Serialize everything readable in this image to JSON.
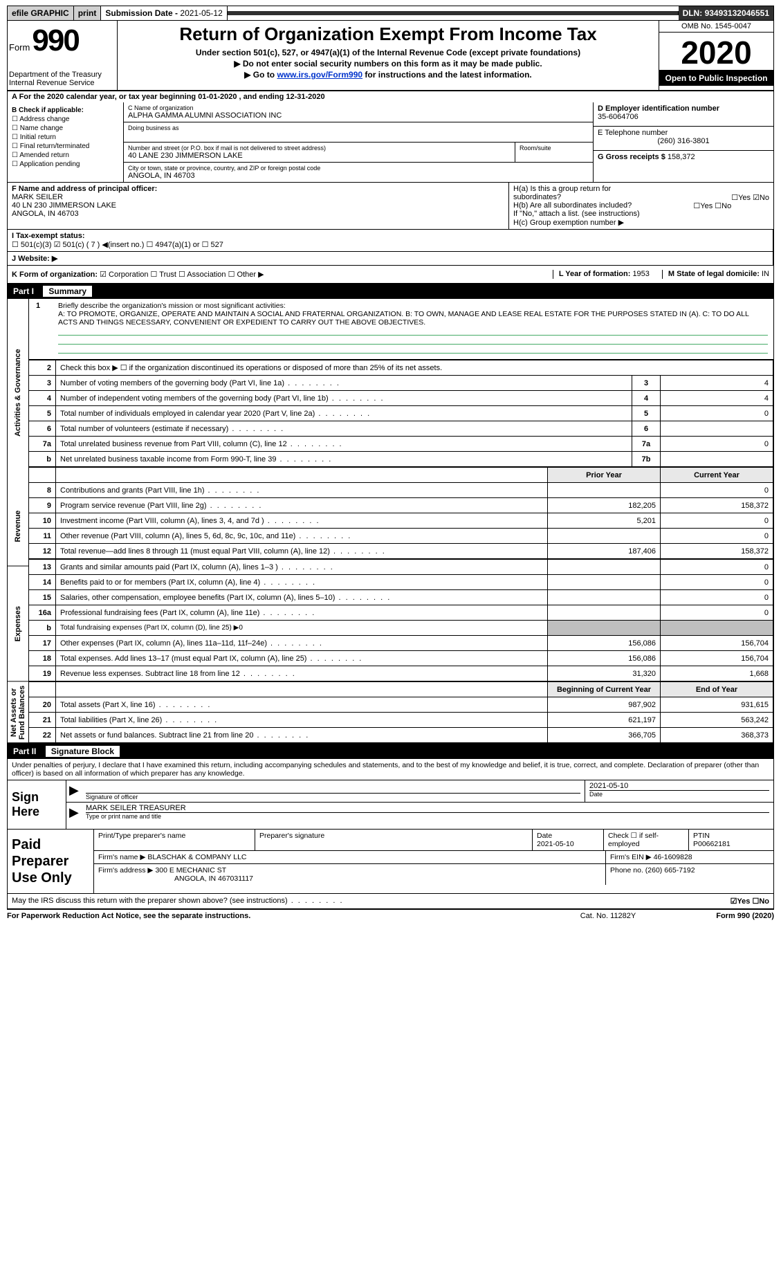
{
  "topbar": {
    "efile": "efile GRAPHIC",
    "print": "print",
    "subdate_label": "Submission Date - ",
    "subdate": "2021-05-12",
    "dln_label": "DLN: ",
    "dln": "93493132046551"
  },
  "header": {
    "form_word": "Form",
    "form_number": "990",
    "dept1": "Department of the Treasury",
    "dept2": "Internal Revenue Service",
    "title": "Return of Organization Exempt From Income Tax",
    "subtitle": "Under section 501(c), 527, or 4947(a)(1) of the Internal Revenue Code (except private foundations)",
    "note1": "▶ Do not enter social security numbers on this form as it may be made public.",
    "note2_pre": "▶ Go to ",
    "note2_link": "www.irs.gov/Form990",
    "note2_post": " for instructions and the latest information.",
    "omb": "OMB No. 1545-0047",
    "year": "2020",
    "inspect": "Open to Public Inspection"
  },
  "line_a": "A For the 2020 calendar year, or tax year beginning 01-01-2020    , and ending 12-31-2020",
  "box_b": {
    "title": "B Check if applicable:",
    "opts": [
      "Address change",
      "Name change",
      "Initial return",
      "Final return/terminated",
      "Amended return",
      "Application pending"
    ]
  },
  "box_c": {
    "name_label": "C Name of organization",
    "name": "ALPHA GAMMA ALUMNI ASSOCIATION INC",
    "dba_label": "Doing business as",
    "addr_label": "Number and street (or P.O. box if mail is not delivered to street address)",
    "room_label": "Room/suite",
    "addr": "40 LANE 230 JIMMERSON LAKE",
    "city_label": "City or town, state or province, country, and ZIP or foreign postal code",
    "city": "ANGOLA, IN  46703"
  },
  "box_d": {
    "label": "D Employer identification number",
    "value": "35-6064706"
  },
  "box_e": {
    "label": "E Telephone number",
    "value": "(260) 316-3801"
  },
  "box_g": {
    "label": "G Gross receipts $ ",
    "value": "158,372"
  },
  "box_f": {
    "label": "F  Name and address of principal officer:",
    "name": "MARK SEILER",
    "addr1": "40 LN 230 JIMMERSON LAKE",
    "addr2": "ANGOLA, IN  46703"
  },
  "box_h": {
    "ha_label": "H(a)  Is this a group return for",
    "ha_label2": "subordinates?",
    "ha_yes": "☐Yes ☑No",
    "hb_label": "H(b)  Are all subordinates included?",
    "hb_yes": "☐Yes ☐No",
    "hb_note": "If \"No,\" attach a list. (see instructions)",
    "hc_label": "H(c)  Group exemption number ▶"
  },
  "row_i": {
    "label": "I   Tax-exempt status:",
    "opts": "☐ 501(c)(3)    ☑ 501(c) ( 7 ) ◀(insert no.)    ☐ 4947(a)(1) or   ☐ 527"
  },
  "row_j": {
    "label": "J   Website: ▶"
  },
  "row_k": {
    "label": "K Form of organization:",
    "opts": "☑ Corporation   ☐ Trust   ☐ Association   ☐ Other ▶"
  },
  "row_lm": {
    "l_label": "L Year of formation: ",
    "l_val": "1953",
    "m_label": "M State of legal domicile: ",
    "m_val": "IN"
  },
  "part1": {
    "tag": "Part I",
    "title": "Summary"
  },
  "mission": {
    "num": "1",
    "lead": "Briefly describe the organization's mission or most significant activities:",
    "text": "A: TO PROMOTE, ORGANIZE, OPERATE AND MAINTAIN A SOCIAL AND FRATERNAL ORGANIZATION. B: TO OWN, MANAGE AND LEASE REAL ESTATE FOR THE PURPOSES STATED IN (A). C: TO DO ALL ACTS AND THINGS NECESSARY, CONVENIENT OR EXPEDIENT TO CARRY OUT THE ABOVE OBJECTIVES."
  },
  "sidebars": [
    "Activities & Governance",
    "Revenue",
    "Expenses",
    "Net Assets or Fund Balances"
  ],
  "gov_rows": [
    {
      "n": "2",
      "d": "Check this box ▶ ☐  if the organization discontinued its operations or disposed of more than 25% of its net assets.",
      "box": "",
      "v": ""
    },
    {
      "n": "3",
      "d": "Number of voting members of the governing body (Part VI, line 1a)",
      "box": "3",
      "v": "4"
    },
    {
      "n": "4",
      "d": "Number of independent voting members of the governing body (Part VI, line 1b)",
      "box": "4",
      "v": "4"
    },
    {
      "n": "5",
      "d": "Total number of individuals employed in calendar year 2020 (Part V, line 2a)",
      "box": "5",
      "v": "0"
    },
    {
      "n": "6",
      "d": "Total number of volunteers (estimate if necessary)",
      "box": "6",
      "v": ""
    },
    {
      "n": "7a",
      "d": "Total unrelated business revenue from Part VIII, column (C), line 12",
      "box": "7a",
      "v": "0"
    },
    {
      "n": "b",
      "d": "Net unrelated business taxable income from Form 990-T, line 39",
      "box": "7b",
      "v": ""
    }
  ],
  "rev_header": {
    "prior": "Prior Year",
    "current": "Current Year"
  },
  "rev_rows": [
    {
      "n": "8",
      "d": "Contributions and grants (Part VIII, line 1h)",
      "p": "",
      "c": "0"
    },
    {
      "n": "9",
      "d": "Program service revenue (Part VIII, line 2g)",
      "p": "182,205",
      "c": "158,372"
    },
    {
      "n": "10",
      "d": "Investment income (Part VIII, column (A), lines 3, 4, and 7d )",
      "p": "5,201",
      "c": "0"
    },
    {
      "n": "11",
      "d": "Other revenue (Part VIII, column (A), lines 5, 6d, 8c, 9c, 10c, and 11e)",
      "p": "",
      "c": "0"
    },
    {
      "n": "12",
      "d": "Total revenue—add lines 8 through 11 (must equal Part VIII, column (A), line 12)",
      "p": "187,406",
      "c": "158,372"
    }
  ],
  "exp_rows": [
    {
      "n": "13",
      "d": "Grants and similar amounts paid (Part IX, column (A), lines 1–3 )",
      "p": "",
      "c": "0"
    },
    {
      "n": "14",
      "d": "Benefits paid to or for members (Part IX, column (A), line 4)",
      "p": "",
      "c": "0"
    },
    {
      "n": "15",
      "d": "Salaries, other compensation, employee benefits (Part IX, column (A), lines 5–10)",
      "p": "",
      "c": "0"
    },
    {
      "n": "16a",
      "d": "Professional fundraising fees (Part IX, column (A), line 11e)",
      "p": "",
      "c": "0"
    },
    {
      "n": "b",
      "d": "Total fundraising expenses (Part IX, column (D), line 25) ▶0",
      "p": "shade",
      "c": "shade"
    },
    {
      "n": "17",
      "d": "Other expenses (Part IX, column (A), lines 11a–11d, 11f–24e)",
      "p": "156,086",
      "c": "156,704"
    },
    {
      "n": "18",
      "d": "Total expenses. Add lines 13–17 (must equal Part IX, column (A), line 25)",
      "p": "156,086",
      "c": "156,704"
    },
    {
      "n": "19",
      "d": "Revenue less expenses. Subtract line 18 from line 12",
      "p": "31,320",
      "c": "1,668"
    }
  ],
  "na_header": {
    "prior": "Beginning of Current Year",
    "current": "End of Year"
  },
  "na_rows": [
    {
      "n": "20",
      "d": "Total assets (Part X, line 16)",
      "p": "987,902",
      "c": "931,615"
    },
    {
      "n": "21",
      "d": "Total liabilities (Part X, line 26)",
      "p": "621,197",
      "c": "563,242"
    },
    {
      "n": "22",
      "d": "Net assets or fund balances. Subtract line 21 from line 20",
      "p": "366,705",
      "c": "368,373"
    }
  ],
  "part2": {
    "tag": "Part II",
    "title": "Signature Block"
  },
  "perjury": "Under penalties of perjury, I declare that I have examined this return, including accompanying schedules and statements, and to the best of my knowledge and belief, it is true, correct, and complete. Declaration of preparer (other than officer) is based on all information of which preparer has any knowledge.",
  "sign": {
    "label": "Sign Here",
    "sig_label": "Signature of officer",
    "date_label": "Date",
    "date": "2021-05-10",
    "name": "MARK SEILER TREASURER",
    "name_label": "Type or print name and title"
  },
  "prep": {
    "label": "Paid Preparer Use Only",
    "h1": "Print/Type preparer's name",
    "h2": "Preparer's signature",
    "h3": "Date",
    "h3v": "2021-05-10",
    "h4": "Check ☐ if self-employed",
    "h5": "PTIN",
    "h5v": "P00662181",
    "firm_label": "Firm's name    ▶ ",
    "firm": "BLASCHAK & COMPANY LLC",
    "ein_label": "Firm's EIN ▶ ",
    "ein": "46-1609828",
    "addr_label": "Firm's address ▶ ",
    "addr1": "300 E MECHANIC ST",
    "addr2": "ANGOLA, IN  467031117",
    "phone_label": "Phone no. ",
    "phone": "(260) 665-7192"
  },
  "discuss": {
    "text": "May the IRS discuss this return with the preparer shown above? (see instructions)",
    "yn": "☑Yes  ☐No"
  },
  "footer": {
    "left": "For Paperwork Reduction Act Notice, see the separate instructions.",
    "mid": "Cat. No. 11282Y",
    "right": "Form 990 (2020)"
  }
}
